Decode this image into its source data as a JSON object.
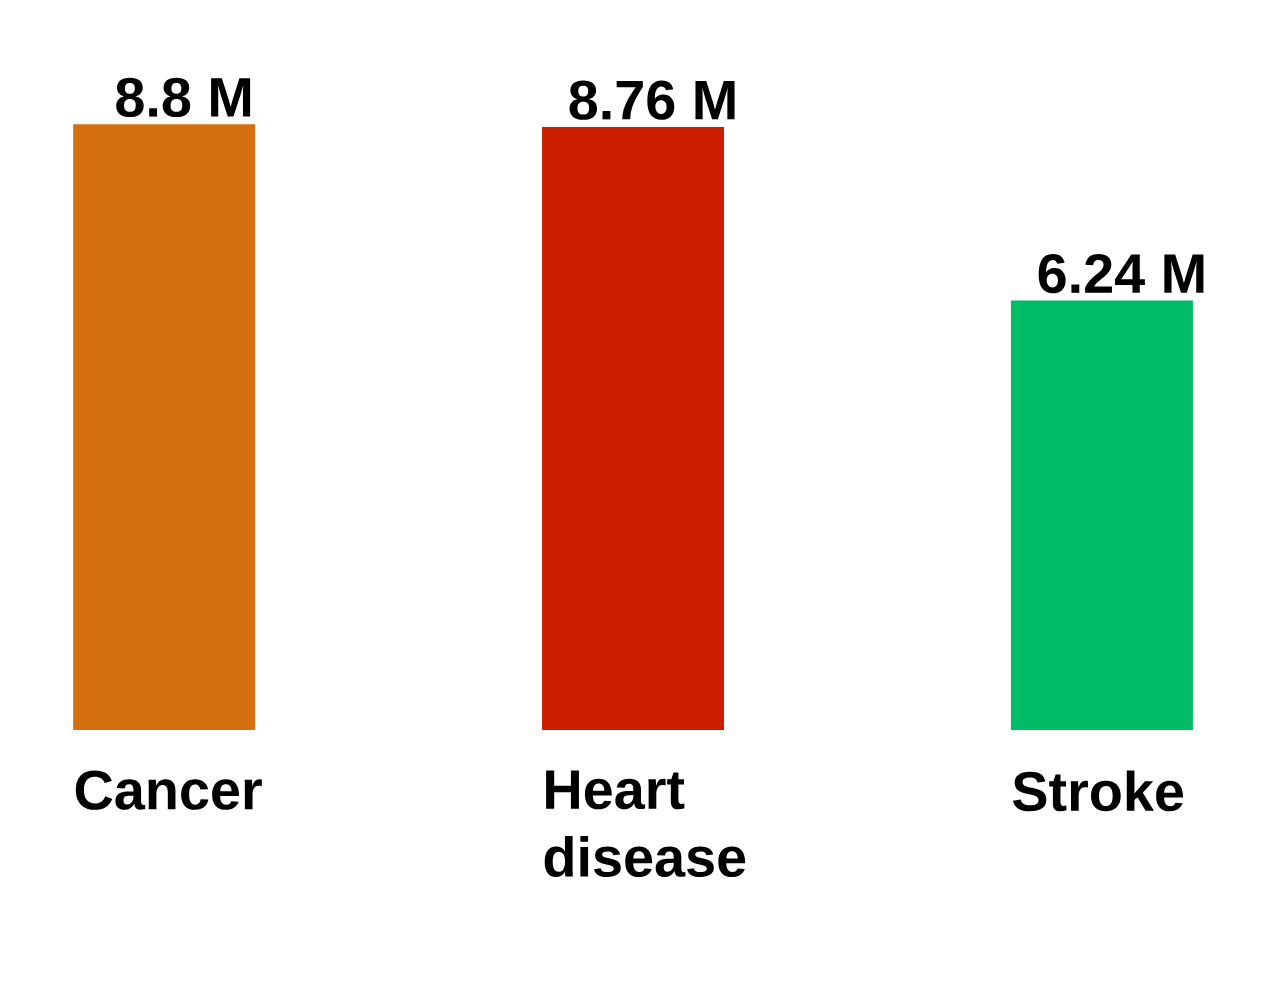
{
  "chart_data": {
    "type": "bar",
    "categories": [
      "Cancer",
      "Heart disease",
      "Stroke"
    ],
    "values": [
      8.8,
      8.76,
      6.24
    ],
    "colors": [
      "#d4700f",
      "#cc1f00",
      "#00bb66"
    ],
    "value_labels": [
      "8.8 M",
      "8.76 M",
      "6.24 M"
    ]
  }
}
